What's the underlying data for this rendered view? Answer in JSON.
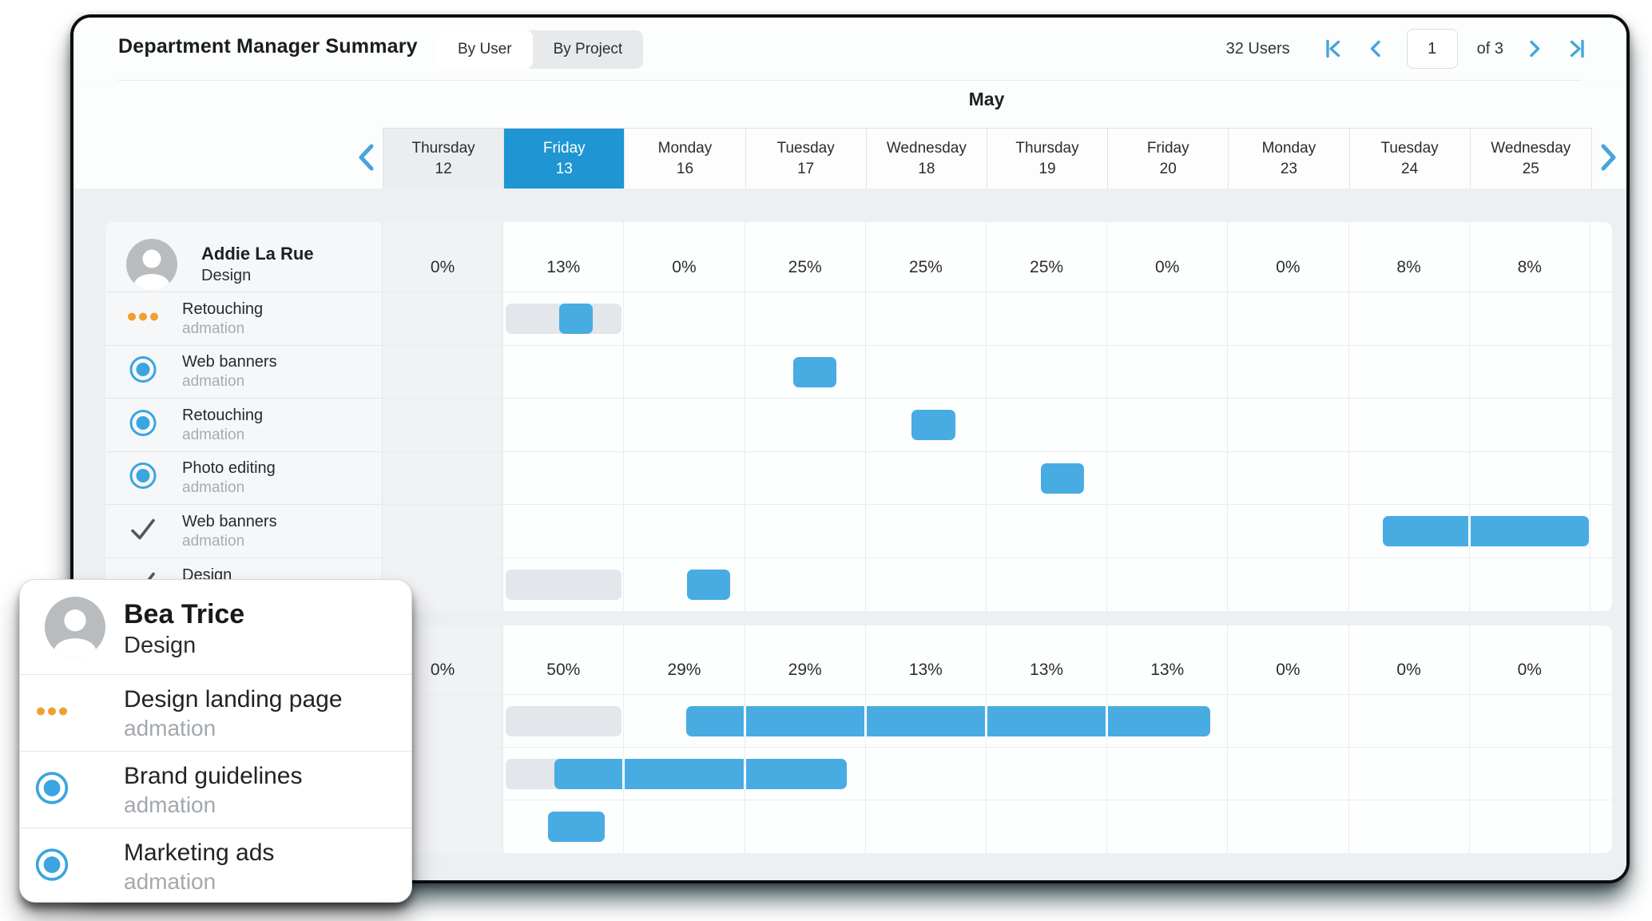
{
  "header": {
    "title": "Department Manager Summary",
    "tabs": [
      {
        "label": "By User",
        "active": true
      },
      {
        "label": "By Project",
        "active": false
      }
    ],
    "users_count": "32 Users",
    "pagination": {
      "page": "1",
      "of_label": "of 3"
    }
  },
  "calendar": {
    "month": "May",
    "days": [
      {
        "name": "Thursday",
        "num": "12",
        "state": "muted"
      },
      {
        "name": "Friday",
        "num": "13",
        "state": "selected"
      },
      {
        "name": "Monday",
        "num": "16",
        "state": "normal"
      },
      {
        "name": "Tuesday",
        "num": "17",
        "state": "normal"
      },
      {
        "name": "Wednesday",
        "num": "18",
        "state": "normal"
      },
      {
        "name": "Thursday",
        "num": "19",
        "state": "normal"
      },
      {
        "name": "Friday",
        "num": "20",
        "state": "normal"
      },
      {
        "name": "Monday",
        "num": "23",
        "state": "normal"
      },
      {
        "name": "Tuesday",
        "num": "24",
        "state": "normal"
      },
      {
        "name": "Wednesday",
        "num": "25",
        "state": "normal"
      }
    ]
  },
  "sections": [
    {
      "user": {
        "name": "Addie La Rue",
        "dept": "Design"
      },
      "percents": [
        "0%",
        "13%",
        "0%",
        "25%",
        "25%",
        "25%",
        "0%",
        "0%",
        "8%",
        "8%"
      ],
      "rows": [
        {
          "title": "Retouching",
          "subtitle": "admation",
          "icon": "dots",
          "bars": [
            {
              "type": "grey",
              "s": [
                1,
                0.02
              ],
              "e": [
                1,
                0.98
              ]
            },
            {
              "type": "blue",
              "s": [
                1,
                0.46
              ],
              "e": [
                1,
                0.74
              ]
            }
          ]
        },
        {
          "title": "Web banners",
          "subtitle": "admation",
          "icon": "radio",
          "bars": [
            {
              "type": "blue",
              "s": [
                3,
                0.4
              ],
              "e": [
                3,
                0.76
              ]
            }
          ]
        },
        {
          "title": "Retouching",
          "subtitle": "admation",
          "icon": "radio",
          "bars": [
            {
              "type": "blue",
              "s": [
                4,
                0.38
              ],
              "e": [
                4,
                0.74
              ]
            }
          ]
        },
        {
          "title": "Photo editing",
          "subtitle": "admation",
          "icon": "radio",
          "bars": [
            {
              "type": "blue",
              "s": [
                5,
                0.45
              ],
              "e": [
                5,
                0.81
              ]
            }
          ]
        },
        {
          "title": "Web banners",
          "subtitle": "admation",
          "icon": "check",
          "bars": [
            {
              "type": "blue",
              "s": [
                8,
                0.28
              ],
              "e": [
                9,
                0.99
              ]
            }
          ]
        },
        {
          "title": "Design",
          "subtitle": "admation",
          "icon": "check",
          "bars": [
            {
              "type": "grey",
              "s": [
                1,
                0.02
              ],
              "e": [
                1,
                0.98
              ]
            },
            {
              "type": "blue",
              "s": [
                2,
                0.52
              ],
              "e": [
                2,
                0.88
              ]
            }
          ]
        }
      ]
    },
    {
      "user": {
        "name": "Bea Trice",
        "dept": "Design"
      },
      "percents": [
        "0%",
        "50%",
        "29%",
        "29%",
        "13%",
        "13%",
        "13%",
        "0%",
        "0%",
        "0%"
      ],
      "rows": [
        {
          "title": "Design landing page",
          "subtitle": "admation",
          "icon": "dots",
          "bars": [
            {
              "type": "grey",
              "s": [
                1,
                0.02
              ],
              "e": [
                1,
                0.98
              ]
            },
            {
              "type": "blue",
              "s": [
                2,
                0.51
              ],
              "e": [
                6,
                0.85
              ]
            }
          ]
        },
        {
          "title": "Brand guidelines",
          "subtitle": "admation",
          "icon": "radio",
          "bars": [
            {
              "type": "grey",
              "s": [
                1,
                0.02
              ],
              "e": [
                1,
                0.5
              ]
            },
            {
              "type": "blue",
              "s": [
                1,
                0.42
              ],
              "e": [
                3,
                0.84
              ]
            }
          ]
        },
        {
          "title": "Marketing ads",
          "subtitle": "admation",
          "icon": "radio",
          "bars": [
            {
              "type": "blue",
              "s": [
                1,
                0.37
              ],
              "e": [
                1,
                0.84
              ]
            }
          ]
        }
      ]
    }
  ],
  "popup": {
    "name": "Bea Trice",
    "dept": "Design",
    "rows": [
      {
        "title": "Design landing page",
        "subtitle": "admation",
        "icon": "dots"
      },
      {
        "title": "Brand guidelines",
        "subtitle": "admation",
        "icon": "radio"
      },
      {
        "title": "Marketing ads",
        "subtitle": "admation",
        "icon": "check-hidden-radio"
      }
    ]
  },
  "colors": {
    "accent_blue": "#3aa5e1",
    "bar_blue": "#48ace3",
    "bar_grey": "#e3e6ea",
    "selected_day": "#1f96d3",
    "dots_orange": "#f19f31",
    "check_grey": "#53575c"
  }
}
